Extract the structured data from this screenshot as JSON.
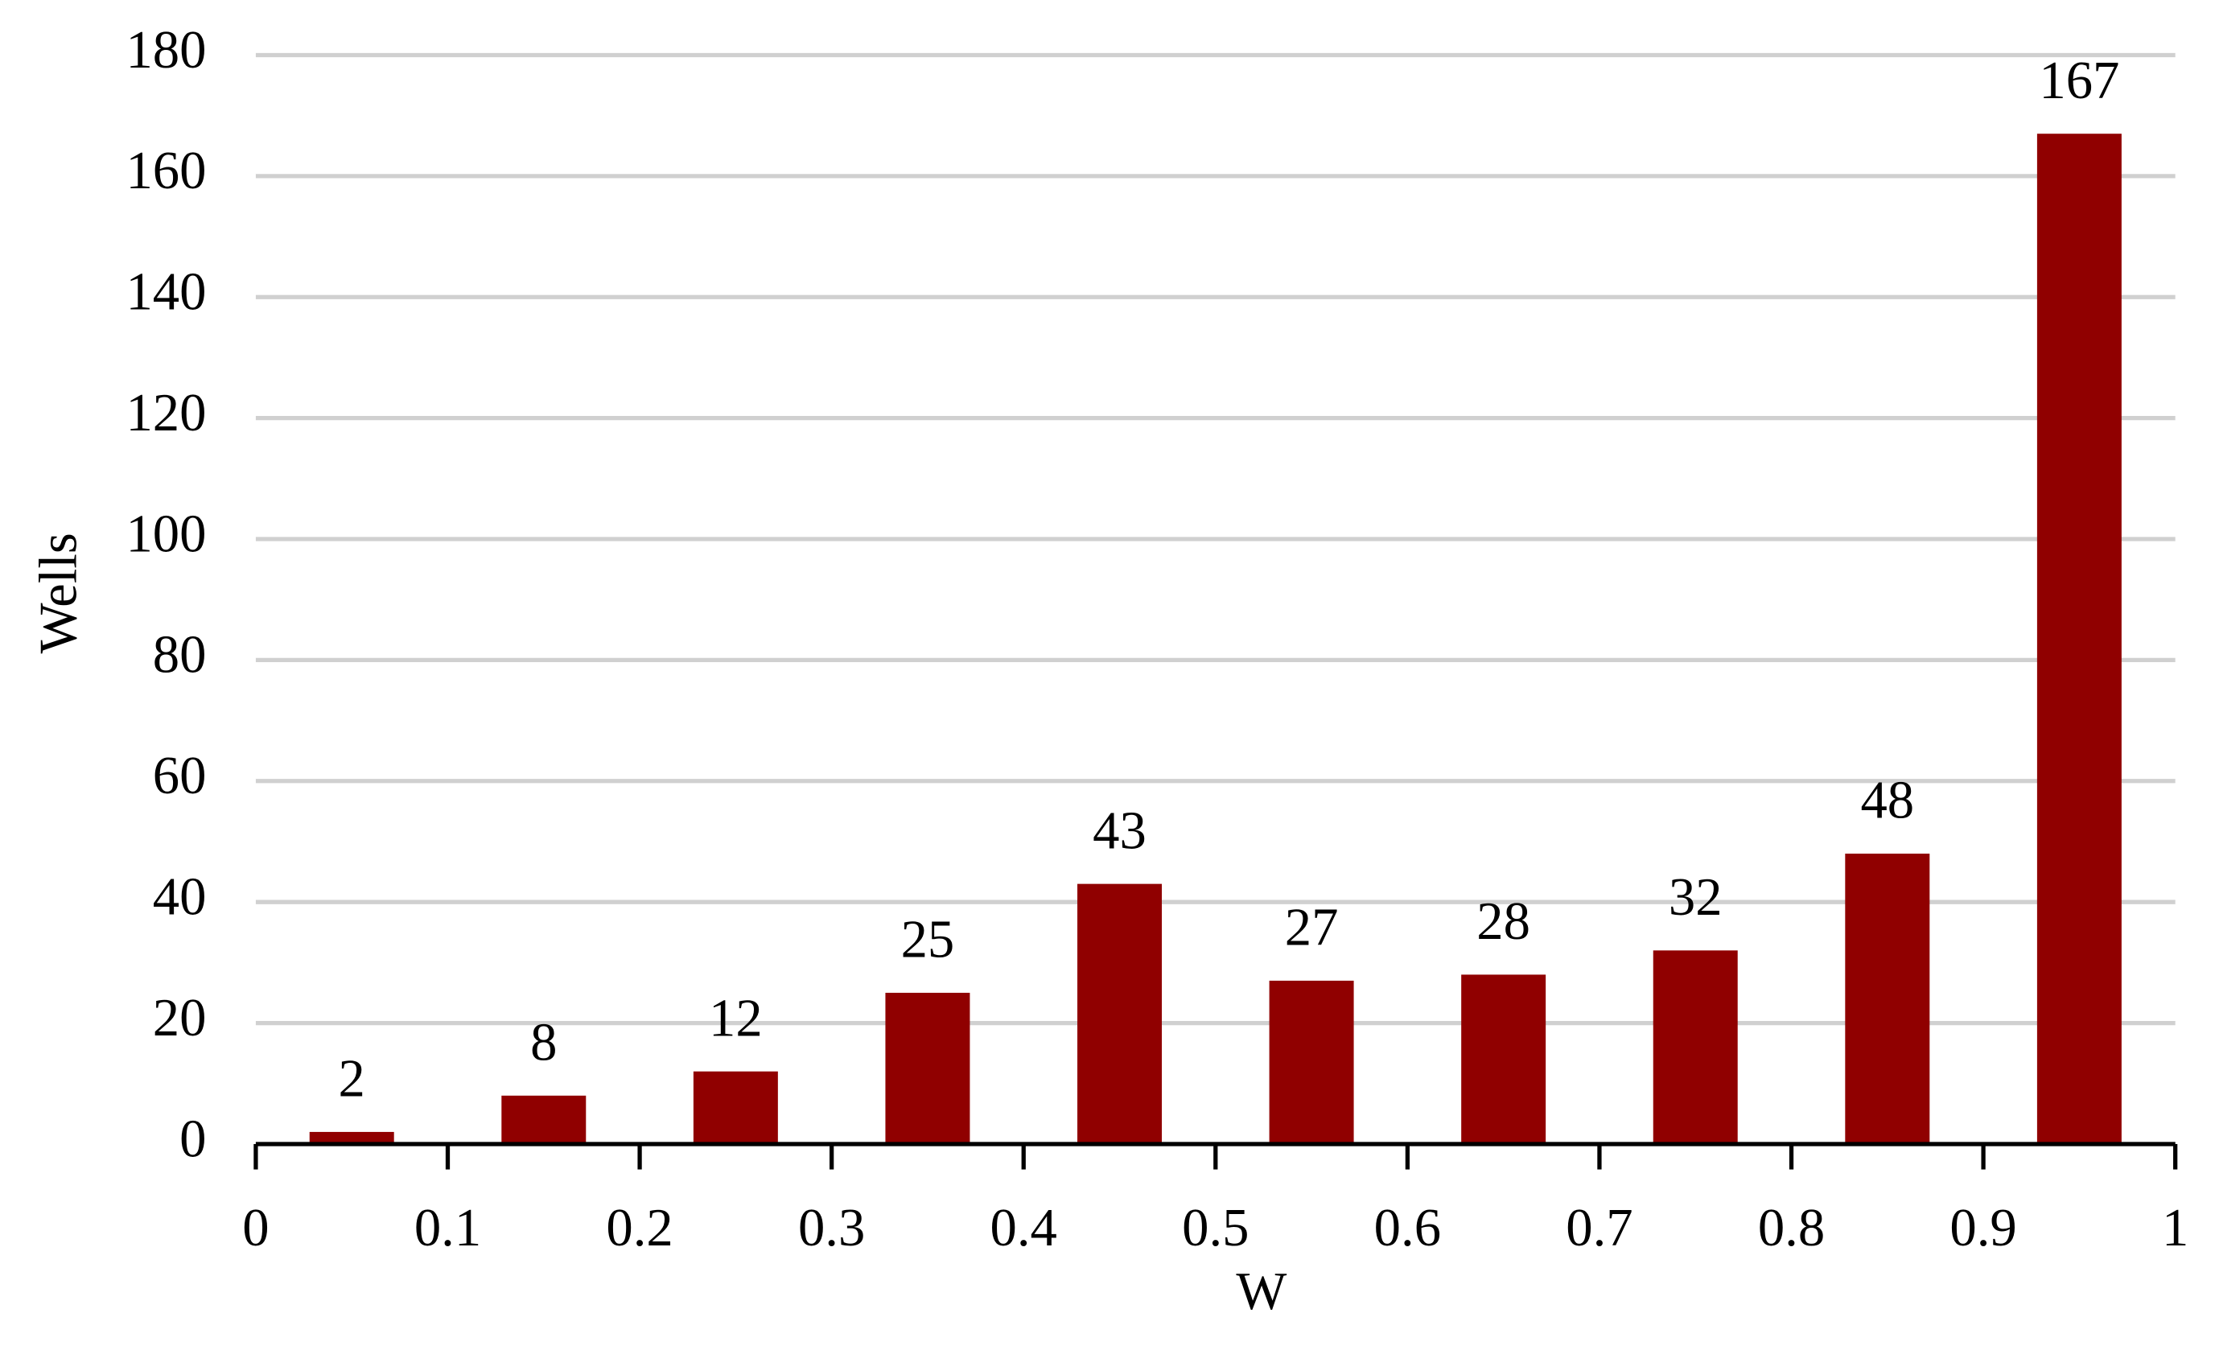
{
  "chart_data": {
    "type": "histogram",
    "xlabel": "W",
    "ylabel": "Wells",
    "bins": [
      0,
      0.1,
      0.2,
      0.3,
      0.4,
      0.5,
      0.6,
      0.7,
      0.8,
      0.9,
      1
    ],
    "values": [
      2,
      8,
      12,
      25,
      43,
      27,
      28,
      32,
      48,
      167
    ],
    "color": "#900000",
    "xlim": [
      0,
      1
    ],
    "xticks": [
      0,
      0.1,
      0.2,
      0.3,
      0.4,
      0.5,
      0.6,
      0.7,
      0.8,
      0.9,
      1
    ],
    "ylim": [
      0,
      180
    ],
    "yticks": [
      0,
      20,
      40,
      60,
      80,
      100,
      120,
      140,
      160,
      180
    ],
    "grid": true
  }
}
